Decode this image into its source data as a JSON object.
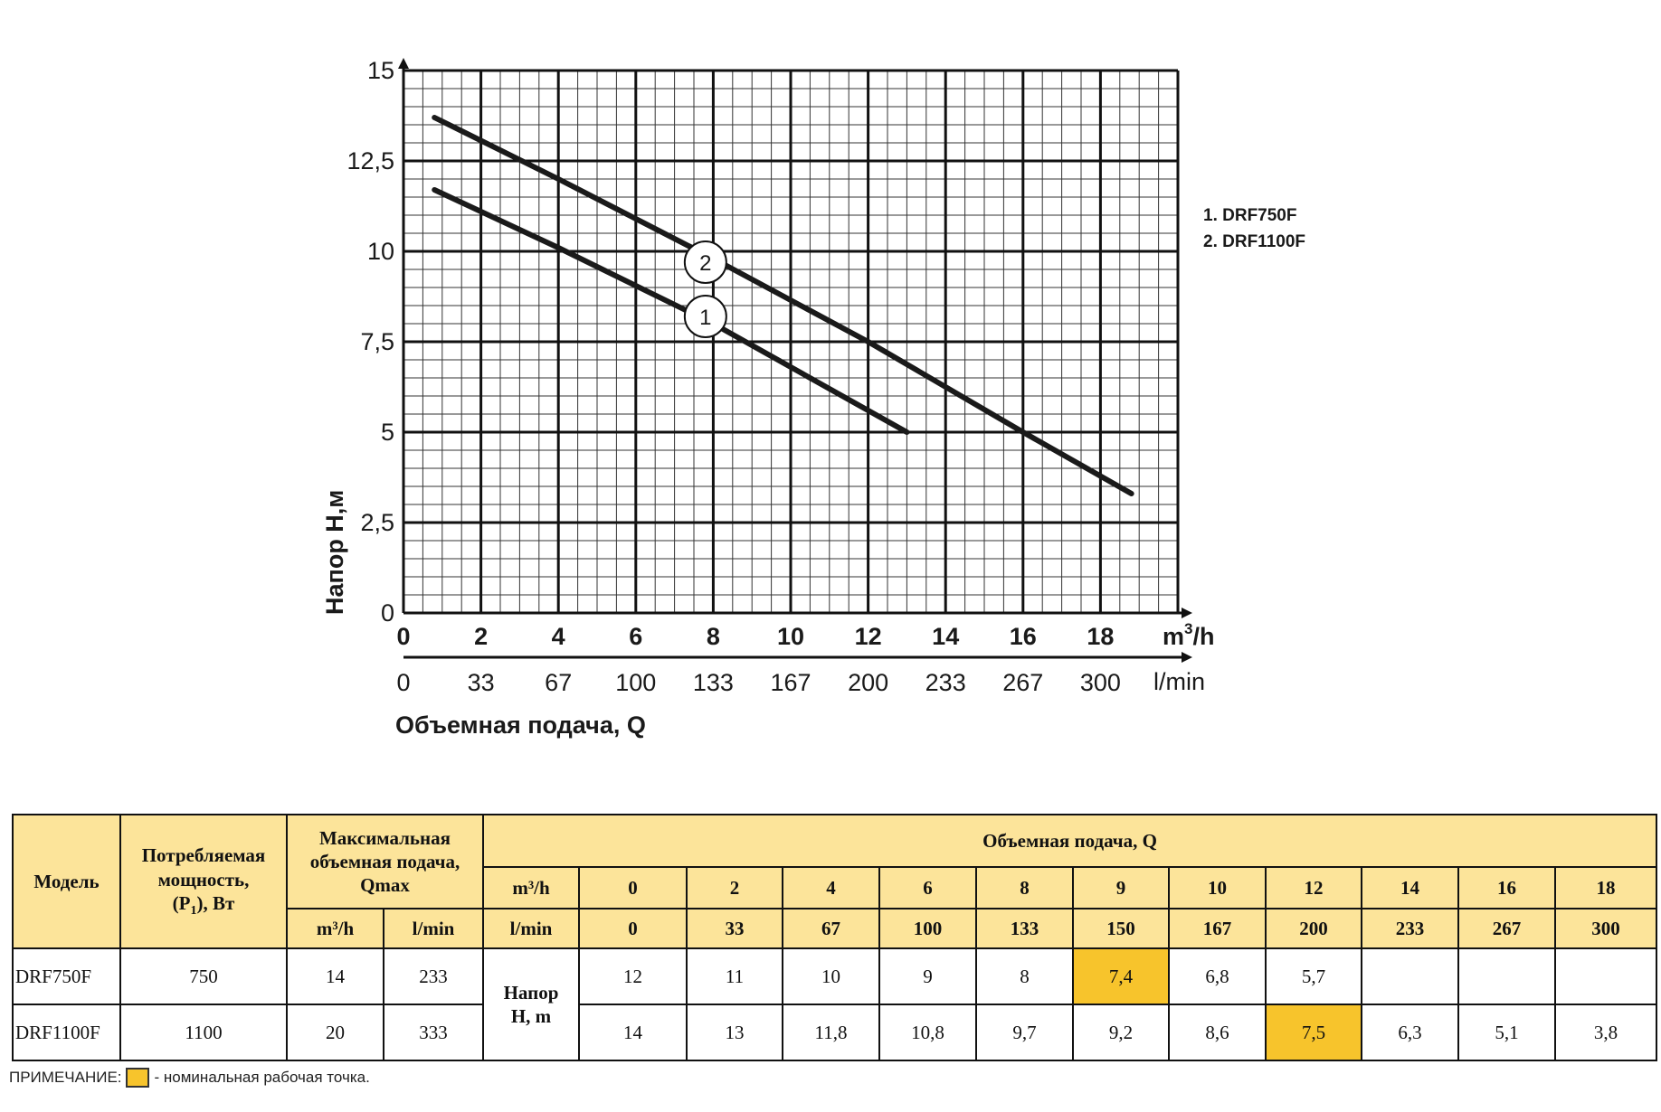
{
  "chart_data": {
    "type": "line",
    "xlabel": "Объемная подача, Q",
    "ylabel": "Напор  Н,м",
    "x_unit": "m³/h",
    "x2_unit": "l/min",
    "xlim": [
      0,
      20
    ],
    "ylim": [
      0,
      15
    ],
    "x_ticks": [
      "0",
      "2",
      "4",
      "6",
      "8",
      "10",
      "12",
      "14",
      "16",
      "18"
    ],
    "x2_ticks": [
      "0",
      "33",
      "67",
      "100",
      "133",
      "167",
      "200",
      "233",
      "267",
      "300"
    ],
    "y_ticks": [
      "0",
      "2,5",
      "5",
      "7,5",
      "10",
      "12,5",
      "15"
    ],
    "grid": true,
    "legend": [
      "1. DRF750F",
      "2. DRF1100F"
    ],
    "legend_position": "right",
    "series": [
      {
        "name": "1",
        "x": [
          0.8,
          4,
          8,
          12,
          13
        ],
        "y": [
          11.7,
          10.1,
          8.0,
          5.6,
          5.0
        ]
      },
      {
        "name": "2",
        "x": [
          0.8,
          4,
          8,
          12,
          16,
          18.8
        ],
        "y": [
          13.7,
          12.0,
          9.8,
          7.5,
          5.0,
          3.3
        ]
      }
    ]
  },
  "table": {
    "header": {
      "model": "Модель",
      "power": "Потребляемая мощность, (P₁), Вт",
      "qmax": "Максимальная объемная подача, Qmax",
      "qmax_m3h": "m³/h",
      "qmax_lmin": "l/min",
      "flow": "Объемная подача, Q",
      "m3h": "m³/h",
      "lmin": "l/min",
      "head": "Напор Н, m"
    },
    "flow_m3h": [
      "0",
      "2",
      "4",
      "6",
      "8",
      "9",
      "10",
      "12",
      "14",
      "16",
      "18"
    ],
    "flow_lmin": [
      "0",
      "33",
      "67",
      "100",
      "133",
      "150",
      "167",
      "200",
      "233",
      "267",
      "300"
    ],
    "rows": [
      {
        "model": "DRF750F",
        "power": "750",
        "qmax_m3h": "14",
        "qmax_lmin": "233",
        "heads": [
          "12",
          "11",
          "10",
          "9",
          "8",
          "7,4",
          "6,8",
          "5,7",
          "",
          "",
          ""
        ],
        "nominal_index": 5
      },
      {
        "model": "DRF1100F",
        "power": "1100",
        "qmax_m3h": "20",
        "qmax_lmin": "333",
        "heads": [
          "14",
          "13",
          "11,8",
          "10,8",
          "9,7",
          "9,2",
          "8,6",
          "7,5",
          "6,3",
          "5,1",
          "3,8"
        ],
        "nominal_index": 7
      }
    ]
  },
  "note": {
    "prefix": "ПРИМЕЧАНИЕ:",
    "text": "- номинальная рабочая точка."
  },
  "colors": {
    "header_bg": "#fce49a",
    "nominal": "#f7c42c",
    "line": "#1a1a1a"
  }
}
